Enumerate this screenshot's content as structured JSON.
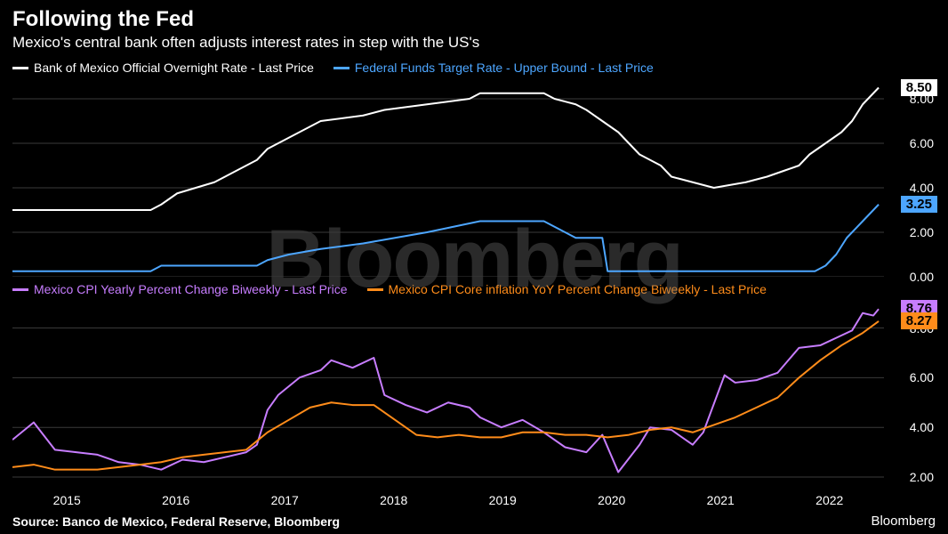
{
  "header": {
    "title": "Following the Fed",
    "subtitle": "Mexico's central bank often adjusts interest rates in step with the US's"
  },
  "watermark": "Bloomberg",
  "panel1": {
    "legend": [
      {
        "label": "Bank of Mexico Official Overnight Rate - Last Price",
        "color": "#ffffff"
      },
      {
        "label": "Federal Funds Target Rate - Upper Bound - Last Price",
        "color": "#4da6ff"
      }
    ],
    "ylim": [
      0,
      9
    ],
    "yticks": [
      0.0,
      2.0,
      4.0,
      6.0,
      8.0
    ],
    "grid_color": "#3a3a3a",
    "series": [
      {
        "name": "banxico",
        "color": "#ffffff",
        "line_width": 2,
        "end_value": "8.50",
        "end_label_bg": "#ffffff",
        "end_label_fg": "#000000",
        "data": [
          [
            2014.6,
            3.0
          ],
          [
            2015.0,
            3.0
          ],
          [
            2015.4,
            3.0
          ],
          [
            2015.9,
            3.0
          ],
          [
            2016.0,
            3.25
          ],
          [
            2016.15,
            3.75
          ],
          [
            2016.5,
            4.25
          ],
          [
            2016.7,
            4.75
          ],
          [
            2016.9,
            5.25
          ],
          [
            2017.0,
            5.75
          ],
          [
            2017.2,
            6.25
          ],
          [
            2017.4,
            6.75
          ],
          [
            2017.5,
            7.0
          ],
          [
            2017.9,
            7.25
          ],
          [
            2018.1,
            7.5
          ],
          [
            2018.5,
            7.75
          ],
          [
            2018.9,
            8.0
          ],
          [
            2019.0,
            8.25
          ],
          [
            2019.6,
            8.25
          ],
          [
            2019.7,
            8.0
          ],
          [
            2019.9,
            7.75
          ],
          [
            2020.0,
            7.5
          ],
          [
            2020.15,
            7.0
          ],
          [
            2020.3,
            6.5
          ],
          [
            2020.4,
            6.0
          ],
          [
            2020.5,
            5.5
          ],
          [
            2020.7,
            5.0
          ],
          [
            2020.8,
            4.5
          ],
          [
            2021.0,
            4.25
          ],
          [
            2021.2,
            4.0
          ],
          [
            2021.5,
            4.25
          ],
          [
            2021.7,
            4.5
          ],
          [
            2021.85,
            4.75
          ],
          [
            2022.0,
            5.0
          ],
          [
            2022.1,
            5.5
          ],
          [
            2022.25,
            6.0
          ],
          [
            2022.4,
            6.5
          ],
          [
            2022.5,
            7.0
          ],
          [
            2022.6,
            7.75
          ],
          [
            2022.75,
            8.5
          ]
        ]
      },
      {
        "name": "fed",
        "color": "#4da6ff",
        "line_width": 2,
        "end_value": "3.25",
        "end_label_bg": "#4da6ff",
        "end_label_fg": "#000000",
        "data": [
          [
            2014.6,
            0.25
          ],
          [
            2015.9,
            0.25
          ],
          [
            2016.0,
            0.5
          ],
          [
            2016.9,
            0.5
          ],
          [
            2017.0,
            0.75
          ],
          [
            2017.2,
            1.0
          ],
          [
            2017.5,
            1.25
          ],
          [
            2017.9,
            1.5
          ],
          [
            2018.2,
            1.75
          ],
          [
            2018.5,
            2.0
          ],
          [
            2018.75,
            2.25
          ],
          [
            2019.0,
            2.5
          ],
          [
            2019.6,
            2.5
          ],
          [
            2019.7,
            2.25
          ],
          [
            2019.8,
            2.0
          ],
          [
            2019.9,
            1.75
          ],
          [
            2020.15,
            1.75
          ],
          [
            2020.2,
            0.25
          ],
          [
            2022.15,
            0.25
          ],
          [
            2022.25,
            0.5
          ],
          [
            2022.35,
            1.0
          ],
          [
            2022.45,
            1.75
          ],
          [
            2022.6,
            2.5
          ],
          [
            2022.75,
            3.25
          ]
        ]
      }
    ]
  },
  "panel2": {
    "legend": [
      {
        "label": "Mexico CPI Yearly Percent Change Biweekly - Last Price",
        "color": "#c77dff"
      },
      {
        "label": "Mexico CPI Core inflation YoY Percent Change Biweekly - Last Price",
        "color": "#ff8c1a"
      }
    ],
    "ylim": [
      1.5,
      9.2
    ],
    "yticks": [
      2.0,
      4.0,
      6.0,
      8.0
    ],
    "grid_color": "#3a3a3a",
    "series": [
      {
        "name": "cpi",
        "color": "#c77dff",
        "line_width": 2,
        "end_value": "8.76",
        "end_label_bg": "#c77dff",
        "end_label_fg": "#000000",
        "data": [
          [
            2014.6,
            3.5
          ],
          [
            2014.8,
            4.2
          ],
          [
            2015.0,
            3.1
          ],
          [
            2015.2,
            3.0
          ],
          [
            2015.4,
            2.9
          ],
          [
            2015.6,
            2.6
          ],
          [
            2015.8,
            2.5
          ],
          [
            2016.0,
            2.3
          ],
          [
            2016.2,
            2.7
          ],
          [
            2016.4,
            2.6
          ],
          [
            2016.6,
            2.8
          ],
          [
            2016.8,
            3.0
          ],
          [
            2016.9,
            3.3
          ],
          [
            2017.0,
            4.7
          ],
          [
            2017.1,
            5.3
          ],
          [
            2017.3,
            6.0
          ],
          [
            2017.5,
            6.3
          ],
          [
            2017.6,
            6.7
          ],
          [
            2017.8,
            6.4
          ],
          [
            2018.0,
            6.8
          ],
          [
            2018.1,
            5.3
          ],
          [
            2018.3,
            4.9
          ],
          [
            2018.5,
            4.6
          ],
          [
            2018.7,
            5.0
          ],
          [
            2018.9,
            4.8
          ],
          [
            2019.0,
            4.4
          ],
          [
            2019.2,
            4.0
          ],
          [
            2019.4,
            4.3
          ],
          [
            2019.6,
            3.8
          ],
          [
            2019.8,
            3.2
          ],
          [
            2020.0,
            3.0
          ],
          [
            2020.15,
            3.7
          ],
          [
            2020.3,
            2.2
          ],
          [
            2020.5,
            3.3
          ],
          [
            2020.6,
            4.0
          ],
          [
            2020.8,
            3.9
          ],
          [
            2021.0,
            3.3
          ],
          [
            2021.1,
            3.8
          ],
          [
            2021.3,
            6.1
          ],
          [
            2021.4,
            5.8
          ],
          [
            2021.6,
            5.9
          ],
          [
            2021.8,
            6.2
          ],
          [
            2022.0,
            7.2
          ],
          [
            2022.2,
            7.3
          ],
          [
            2022.4,
            7.7
          ],
          [
            2022.5,
            7.9
          ],
          [
            2022.6,
            8.6
          ],
          [
            2022.7,
            8.5
          ],
          [
            2022.75,
            8.76
          ]
        ]
      },
      {
        "name": "core",
        "color": "#ff8c1a",
        "line_width": 2,
        "end_value": "8.27",
        "end_label_bg": "#ff8c1a",
        "end_label_fg": "#000000",
        "data": [
          [
            2014.6,
            2.4
          ],
          [
            2014.8,
            2.5
          ],
          [
            2015.0,
            2.3
          ],
          [
            2015.2,
            2.3
          ],
          [
            2015.4,
            2.3
          ],
          [
            2015.6,
            2.4
          ],
          [
            2015.8,
            2.5
          ],
          [
            2016.0,
            2.6
          ],
          [
            2016.2,
            2.8
          ],
          [
            2016.4,
            2.9
          ],
          [
            2016.6,
            3.0
          ],
          [
            2016.8,
            3.1
          ],
          [
            2017.0,
            3.8
          ],
          [
            2017.2,
            4.3
          ],
          [
            2017.4,
            4.8
          ],
          [
            2017.6,
            5.0
          ],
          [
            2017.8,
            4.9
          ],
          [
            2018.0,
            4.9
          ],
          [
            2018.2,
            4.3
          ],
          [
            2018.4,
            3.7
          ],
          [
            2018.6,
            3.6
          ],
          [
            2018.8,
            3.7
          ],
          [
            2019.0,
            3.6
          ],
          [
            2019.2,
            3.6
          ],
          [
            2019.4,
            3.8
          ],
          [
            2019.6,
            3.8
          ],
          [
            2019.8,
            3.7
          ],
          [
            2020.0,
            3.7
          ],
          [
            2020.2,
            3.6
          ],
          [
            2020.4,
            3.7
          ],
          [
            2020.6,
            3.9
          ],
          [
            2020.8,
            4.0
          ],
          [
            2021.0,
            3.8
          ],
          [
            2021.2,
            4.1
          ],
          [
            2021.4,
            4.4
          ],
          [
            2021.6,
            4.8
          ],
          [
            2021.8,
            5.2
          ],
          [
            2022.0,
            6.0
          ],
          [
            2022.2,
            6.7
          ],
          [
            2022.4,
            7.3
          ],
          [
            2022.6,
            7.8
          ],
          [
            2022.75,
            8.27
          ]
        ]
      }
    ]
  },
  "xaxis": {
    "range": [
      2014.6,
      2022.8
    ],
    "ticks": [
      "2015",
      "2016",
      "2017",
      "2018",
      "2019",
      "2020",
      "2021",
      "2022"
    ]
  },
  "footer": {
    "source": "Source: Banco de Mexico, Federal Reserve, Bloomberg",
    "brand": "Bloomberg"
  },
  "colors": {
    "bg": "#000000",
    "text": "#ffffff"
  }
}
